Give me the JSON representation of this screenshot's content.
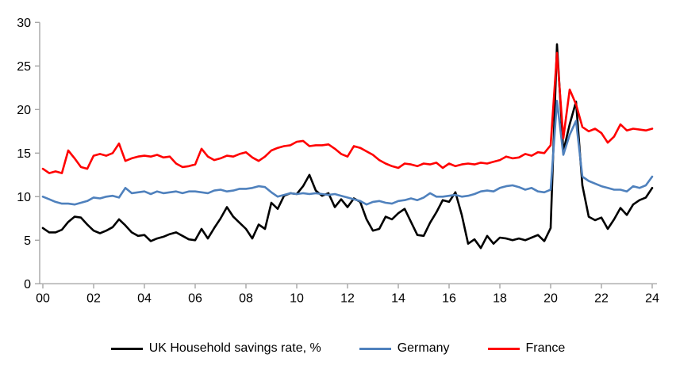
{
  "chart_data": {
    "type": "line",
    "title": "",
    "xlabel": "",
    "ylabel": "",
    "x_axis": {
      "unit": "year (quarterly data)",
      "start": "2000 Q1",
      "end": "2024 Q1",
      "tick_labels": [
        "00",
        "02",
        "04",
        "06",
        "08",
        "10",
        "12",
        "14",
        "16",
        "18",
        "20",
        "22",
        "24"
      ]
    },
    "y_axis": {
      "min": 0,
      "max": 30,
      "tick_interval": 5,
      "tick_labels": [
        "0",
        "5",
        "10",
        "15",
        "20",
        "25",
        "30"
      ]
    },
    "grid": false,
    "legend_position": "bottom",
    "axis_color": "#A6A6A6",
    "series": [
      {
        "name": "UK Household savings rate, %",
        "color": "#000000",
        "values": [
          6.4,
          5.9,
          5.9,
          6.2,
          7.1,
          7.7,
          7.6,
          6.8,
          6.1,
          5.8,
          6.1,
          6.5,
          7.4,
          6.7,
          5.9,
          5.5,
          5.6,
          4.9,
          5.2,
          5.4,
          5.7,
          5.9,
          5.5,
          5.1,
          5.0,
          6.3,
          5.2,
          6.4,
          7.5,
          8.8,
          7.7,
          7.0,
          6.3,
          5.2,
          6.8,
          6.3,
          9.3,
          8.6,
          10.1,
          10.4,
          10.3,
          11.2,
          12.5,
          10.7,
          10.1,
          10.4,
          8.8,
          9.7,
          8.8,
          9.8,
          9.4,
          7.4,
          6.1,
          6.3,
          7.7,
          7.4,
          8.1,
          8.6,
          7.1,
          5.6,
          5.5,
          7.0,
          8.2,
          9.6,
          9.4,
          10.5,
          7.9,
          4.6,
          5.1,
          4.1,
          5.5,
          4.6,
          5.3,
          5.2,
          5.0,
          5.2,
          5.0,
          5.3,
          5.6,
          4.9,
          6.4,
          27.5,
          15.2,
          18.3,
          20.9,
          11.3,
          7.7,
          7.3,
          7.6,
          6.3,
          7.4,
          8.7,
          7.9,
          9.1,
          9.6,
          9.9,
          11.0
        ]
      },
      {
        "name": "Germany",
        "color": "#4F81BD",
        "values": [
          10.0,
          9.7,
          9.4,
          9.2,
          9.2,
          9.1,
          9.3,
          9.5,
          9.9,
          9.8,
          10.0,
          10.1,
          9.9,
          11.0,
          10.4,
          10.5,
          10.6,
          10.3,
          10.6,
          10.4,
          10.5,
          10.6,
          10.4,
          10.6,
          10.6,
          10.5,
          10.4,
          10.7,
          10.8,
          10.6,
          10.7,
          10.9,
          10.9,
          11.0,
          11.2,
          11.1,
          10.5,
          10.0,
          10.2,
          10.4,
          10.3,
          10.4,
          10.3,
          10.4,
          10.3,
          10.2,
          10.3,
          10.1,
          9.9,
          9.7,
          9.5,
          9.1,
          9.4,
          9.5,
          9.3,
          9.2,
          9.5,
          9.6,
          9.8,
          9.6,
          9.9,
          10.4,
          10.0,
          10.0,
          10.1,
          10.2,
          10.0,
          10.1,
          10.3,
          10.6,
          10.7,
          10.6,
          11.0,
          11.2,
          11.3,
          11.1,
          10.8,
          11.0,
          10.6,
          10.5,
          10.8,
          21.0,
          14.8,
          17.1,
          18.7,
          12.3,
          11.8,
          11.5,
          11.2,
          11.0,
          10.8,
          10.8,
          10.6,
          11.2,
          11.0,
          11.3,
          12.3
        ]
      },
      {
        "name": "France",
        "color": "#FF0000",
        "values": [
          13.2,
          12.7,
          12.9,
          12.7,
          15.3,
          14.4,
          13.4,
          13.2,
          14.7,
          14.9,
          14.7,
          15.0,
          16.1,
          14.1,
          14.4,
          14.6,
          14.7,
          14.6,
          14.8,
          14.5,
          14.6,
          13.8,
          13.4,
          13.5,
          13.7,
          15.5,
          14.6,
          14.2,
          14.4,
          14.7,
          14.6,
          14.9,
          15.1,
          14.5,
          14.1,
          14.6,
          15.3,
          15.6,
          15.8,
          15.9,
          16.3,
          16.4,
          15.8,
          15.9,
          15.9,
          16.0,
          15.5,
          14.9,
          14.6,
          15.8,
          15.6,
          15.2,
          14.8,
          14.2,
          13.8,
          13.5,
          13.3,
          13.8,
          13.7,
          13.5,
          13.8,
          13.7,
          13.9,
          13.3,
          13.8,
          13.5,
          13.7,
          13.8,
          13.7,
          13.9,
          13.8,
          14.0,
          14.2,
          14.6,
          14.4,
          14.5,
          14.9,
          14.7,
          15.1,
          15.0,
          15.9,
          26.5,
          16.7,
          22.3,
          20.6,
          18.0,
          17.5,
          17.8,
          17.3,
          16.2,
          16.9,
          18.3,
          17.6,
          17.8,
          17.7,
          17.6,
          17.8
        ]
      }
    ]
  }
}
